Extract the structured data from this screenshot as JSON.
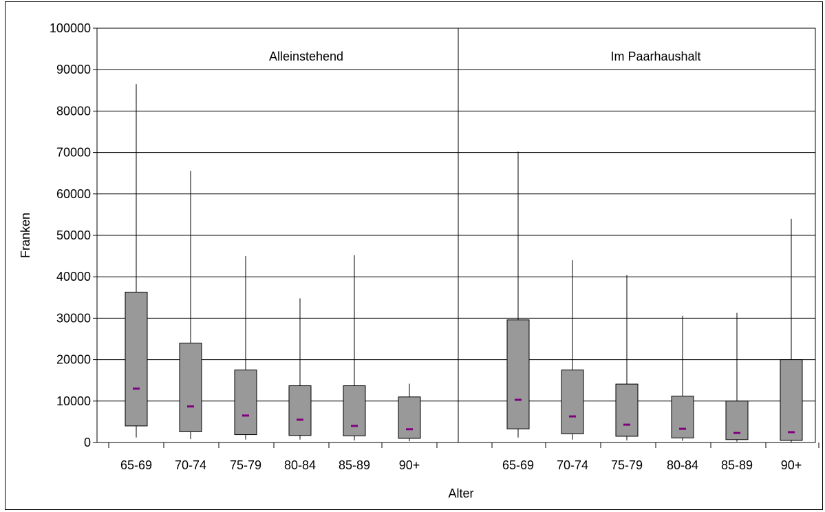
{
  "chart_data": {
    "type": "boxplot",
    "xlabel": "Alter",
    "ylabel": "Franken",
    "ylim": [
      0,
      100000
    ],
    "yticks": [
      0,
      10000,
      20000,
      30000,
      40000,
      50000,
      60000,
      70000,
      80000,
      90000,
      100000
    ],
    "grid": true,
    "colors": {
      "box": "#999999",
      "median": "#800080",
      "line": "#000000"
    },
    "panels": [
      {
        "title": "Alleinstehend",
        "categories": [
          "65-69",
          "70-74",
          "75-79",
          "80-84",
          "85-89",
          "90+"
        ],
        "boxes": [
          {
            "whisker_low": 1200,
            "q1": 4000,
            "median": 13000,
            "q3": 36300,
            "whisker_high": 86500
          },
          {
            "whisker_low": 800,
            "q1": 2600,
            "median": 8700,
            "q3": 24000,
            "whisker_high": 65600
          },
          {
            "whisker_low": 700,
            "q1": 1900,
            "median": 6500,
            "q3": 17500,
            "whisker_high": 45000
          },
          {
            "whisker_low": 700,
            "q1": 1700,
            "median": 5500,
            "q3": 13700,
            "whisker_high": 34800
          },
          {
            "whisker_low": 500,
            "q1": 1600,
            "median": 4000,
            "q3": 13700,
            "whisker_high": 45200
          },
          {
            "whisker_low": 300,
            "q1": 1000,
            "median": 3200,
            "q3": 11000,
            "whisker_high": 14200
          }
        ]
      },
      {
        "title": "Im Paarhaushalt",
        "categories": [
          "65-69",
          "70-74",
          "75-79",
          "80-84",
          "85-89",
          "90+"
        ],
        "boxes": [
          {
            "whisker_low": 1200,
            "q1": 3300,
            "median": 10300,
            "q3": 29600,
            "whisker_high": 70200
          },
          {
            "whisker_low": 700,
            "q1": 2100,
            "median": 6300,
            "q3": 17500,
            "whisker_high": 44000
          },
          {
            "whisker_low": 500,
            "q1": 1500,
            "median": 4300,
            "q3": 14100,
            "whisker_high": 40400
          },
          {
            "whisker_low": 400,
            "q1": 1100,
            "median": 3300,
            "q3": 11200,
            "whisker_high": 30600
          },
          {
            "whisker_low": 200,
            "q1": 700,
            "median": 2300,
            "q3": 10000,
            "whisker_high": 31300
          },
          {
            "whisker_low": 100,
            "q1": 500,
            "median": 2500,
            "q3": 20000,
            "whisker_high": 54000
          }
        ]
      }
    ]
  }
}
